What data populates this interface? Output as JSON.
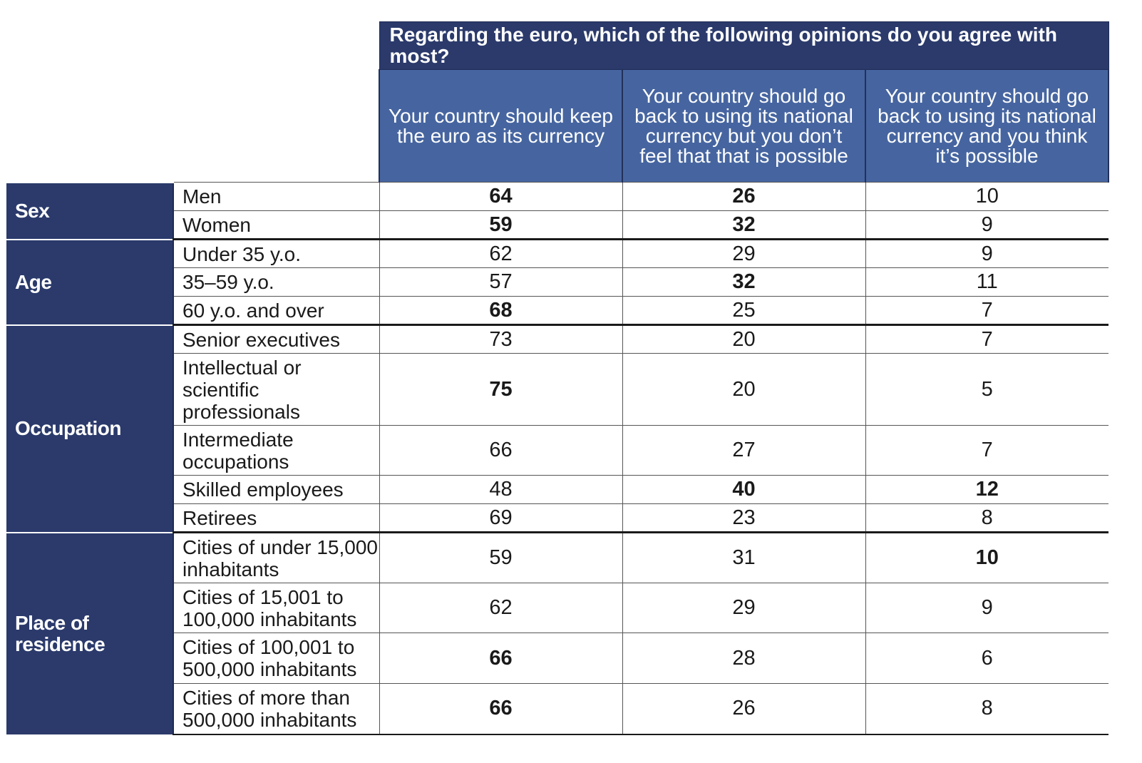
{
  "chart_data": {
    "type": "table",
    "title": "Regarding the euro, which of the following opinions do you agree with most?",
    "columns": [
      "Your country should keep the euro as its currency",
      "Your country should go back to using its national currency but you don’t feel that that is possible",
      "Your country should go back to using its national currency and you think it’s possible"
    ],
    "groups": [
      {
        "name": "Sex",
        "rows": [
          {
            "label": "Men",
            "values": [
              64,
              26,
              10
            ],
            "bold": [
              true,
              true,
              false
            ]
          },
          {
            "label": "Women",
            "values": [
              59,
              32,
              9
            ],
            "bold": [
              true,
              true,
              false
            ]
          }
        ]
      },
      {
        "name": "Age",
        "rows": [
          {
            "label": "Under 35 y.o.",
            "values": [
              62,
              29,
              9
            ],
            "bold": [
              false,
              false,
              false
            ]
          },
          {
            "label": "35–59 y.o.",
            "values": [
              57,
              32,
              11
            ],
            "bold": [
              false,
              true,
              false
            ]
          },
          {
            "label": "60 y.o. and over",
            "values": [
              68,
              25,
              7
            ],
            "bold": [
              true,
              false,
              false
            ]
          }
        ]
      },
      {
        "name": "Occupation",
        "rows": [
          {
            "label": "Senior executives",
            "values": [
              73,
              20,
              7
            ],
            "bold": [
              false,
              false,
              false
            ]
          },
          {
            "label": "Intellectual or scientific professionals",
            "values": [
              75,
              20,
              5
            ],
            "bold": [
              true,
              false,
              false
            ]
          },
          {
            "label": "Intermediate occupations",
            "values": [
              66,
              27,
              7
            ],
            "bold": [
              false,
              false,
              false
            ]
          },
          {
            "label": "Skilled employees",
            "values": [
              48,
              40,
              12
            ],
            "bold": [
              false,
              true,
              true
            ]
          },
          {
            "label": "Retirees",
            "values": [
              69,
              23,
              8
            ],
            "bold": [
              false,
              false,
              false
            ]
          }
        ]
      },
      {
        "name": "Place of residence",
        "rows": [
          {
            "label": "Cities of under 15,000 inhabitants",
            "values": [
              59,
              31,
              10
            ],
            "bold": [
              false,
              false,
              true
            ]
          },
          {
            "label": "Cities of 15,001 to 100,000 inhabitants",
            "values": [
              62,
              29,
              9
            ],
            "bold": [
              false,
              false,
              false
            ]
          },
          {
            "label": "Cities of 100,001 to 500,000 inhabitants",
            "values": [
              66,
              28,
              6
            ],
            "bold": [
              true,
              false,
              false
            ]
          },
          {
            "label": "Cities of more than 500,000 inhabitants",
            "values": [
              66,
              26,
              8
            ],
            "bold": [
              true,
              false,
              false
            ]
          }
        ]
      }
    ]
  },
  "colors": {
    "header_dark": "#2b3a6b",
    "header_light": "#4665a0",
    "group_bg": "#2b3a6b"
  }
}
